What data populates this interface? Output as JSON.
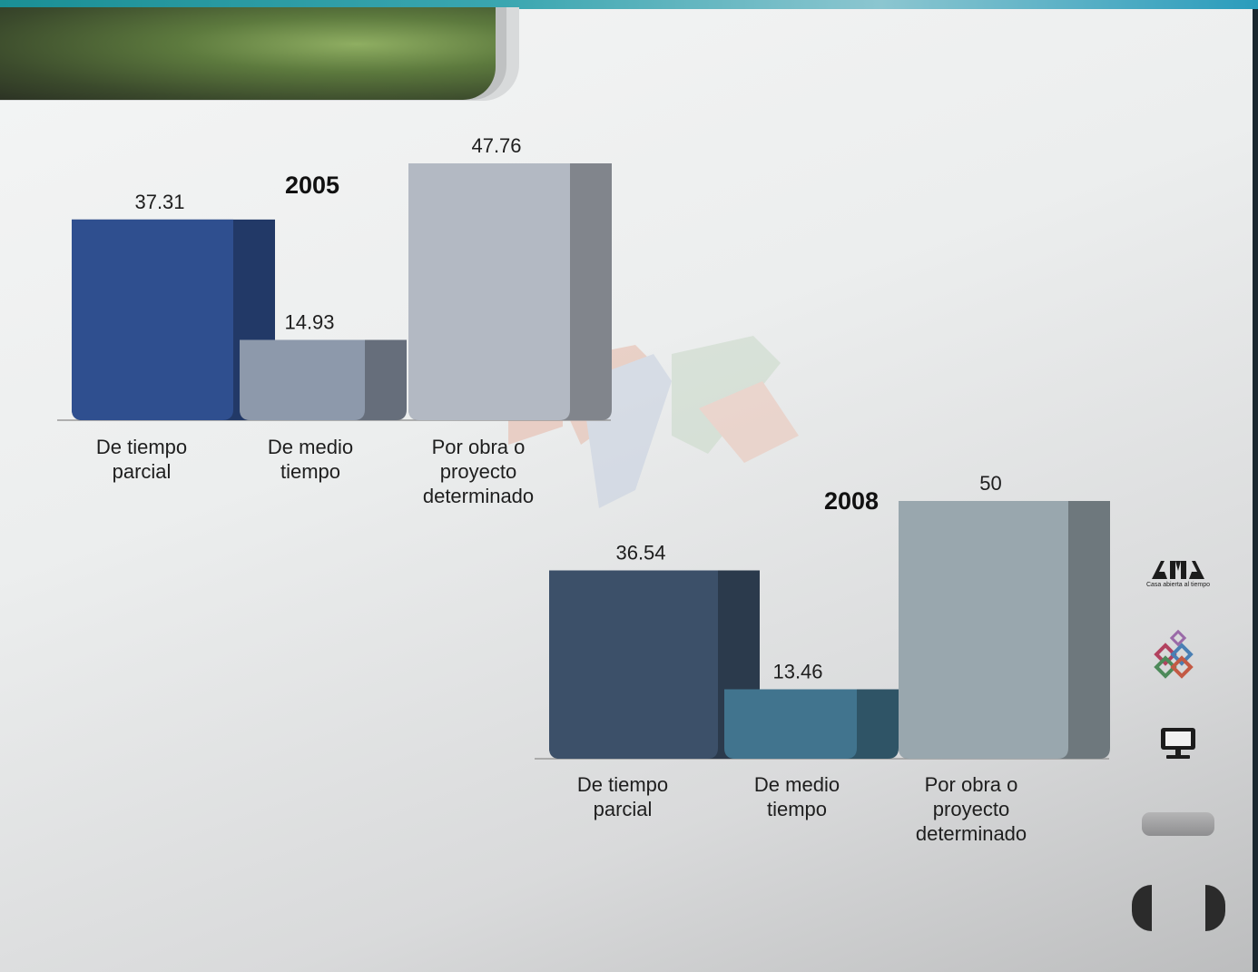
{
  "slide": {
    "accent_color": "#1a8f95",
    "banner_color": "#5d7a3e"
  },
  "chart_data": [
    {
      "type": "bar",
      "title": "2005",
      "categories": [
        "De tiempo\nparcial",
        "De medio\ntiempo",
        "Por obra o\nproyecto\ndeterminado"
      ],
      "values": [
        37.31,
        14.93,
        47.76
      ],
      "value_labels": [
        "37.31",
        "14.93",
        "47.76"
      ],
      "colors": [
        "#2f4f8f",
        "#8d99ab",
        "#b3b9c3"
      ],
      "xlabel": "",
      "ylabel": "",
      "ylim": [
        0,
        47.76
      ],
      "grid": false,
      "legend": "none"
    },
    {
      "type": "bar",
      "title": "2008",
      "categories": [
        "De tiempo\nparcial",
        "De medio\ntiempo",
        "Por obra o\nproyecto\ndeterminado"
      ],
      "values": [
        36.54,
        13.46,
        50
      ],
      "value_labels": [
        "36.54",
        "13.46",
        "50"
      ],
      "colors": [
        "#3c5069",
        "#41748e",
        "#99a7ae"
      ],
      "xlabel": "",
      "ylabel": "",
      "ylim": [
        0,
        50
      ],
      "grid": false,
      "legend": "none"
    }
  ],
  "sidebar": {
    "logo_caption": "Casa abierta al tiempo",
    "icons": [
      "uam-logo-icon",
      "sections-icon",
      "monitor-icon",
      "menu-pill-icon",
      "previous-icon",
      "next-icon"
    ]
  }
}
